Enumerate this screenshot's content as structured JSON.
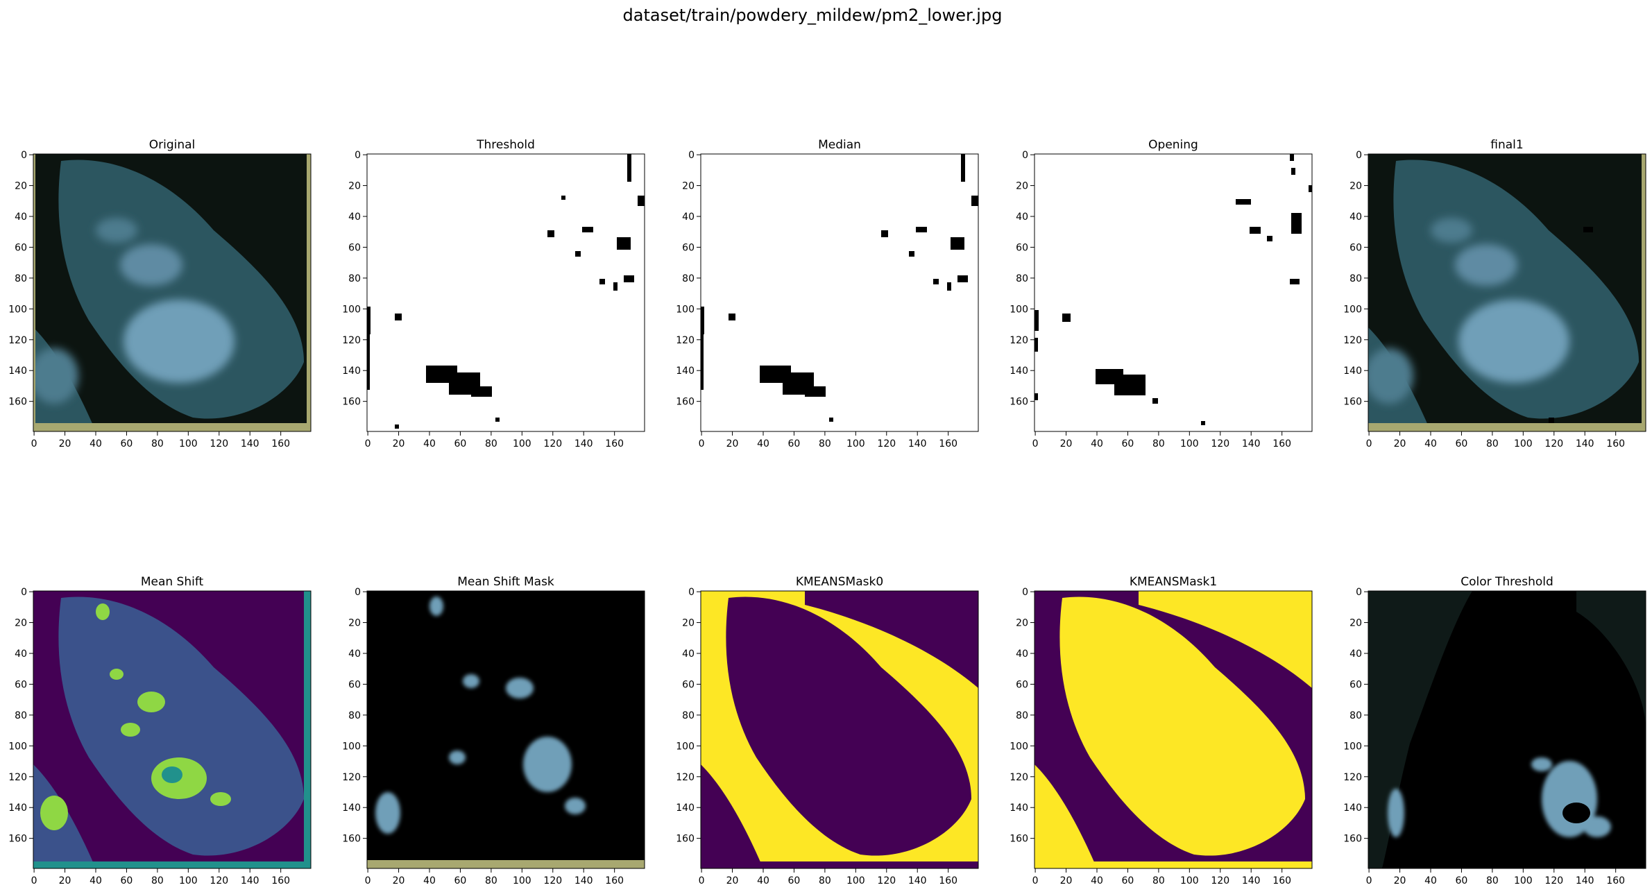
{
  "figure": {
    "suptitle": "dataset/train/powdery_mildew/pm2_lower.jpg",
    "image_size": 180
  },
  "axis": {
    "x_ticks": [
      0,
      20,
      40,
      60,
      80,
      100,
      120,
      140,
      160
    ],
    "y_ticks": [
      0,
      20,
      40,
      60,
      80,
      100,
      120,
      140,
      160
    ]
  },
  "panels": [
    {
      "id": "original",
      "title": "Original",
      "kind": "rgb"
    },
    {
      "id": "threshold",
      "title": "Threshold",
      "kind": "binary"
    },
    {
      "id": "median",
      "title": "Median",
      "kind": "binary"
    },
    {
      "id": "opening",
      "title": "Opening",
      "kind": "binary"
    },
    {
      "id": "final1",
      "title": "final1",
      "kind": "rgb"
    },
    {
      "id": "mean-shift",
      "title": "Mean Shift",
      "kind": "viridis"
    },
    {
      "id": "mean-shift-mask",
      "title": "Mean Shift Mask",
      "kind": "masked-rgb"
    },
    {
      "id": "kmeans-mask0",
      "title": "KMEANSMask0",
      "kind": "viridis-binary"
    },
    {
      "id": "kmeans-mask1",
      "title": "KMEANSMask1",
      "kind": "viridis-binary"
    },
    {
      "id": "color-threshold",
      "title": "Color Threshold",
      "kind": "masked-rgb"
    }
  ],
  "colors": {
    "viridis_dark": "#440154",
    "viridis_yellow": "#fde725",
    "viridis_blue": "#3b528b",
    "viridis_teal": "#21918c",
    "viridis_green": "#8fd744",
    "leaf_dark": "#1f3a3e",
    "leaf_light": "#6f9fb8",
    "background_dark": "#0c1410",
    "mask_black": "#000000",
    "white": "#ffffff"
  }
}
